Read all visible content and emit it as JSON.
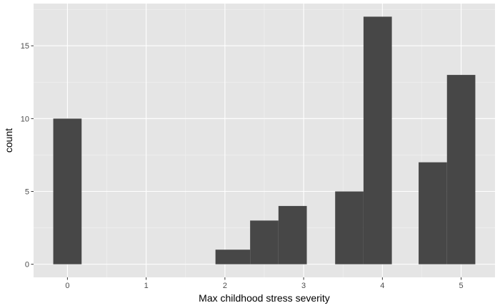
{
  "chart_data": {
    "type": "bar",
    "xlabel": "Max childhood stress severity",
    "ylabel": "count",
    "xlim": [
      -0.43,
      5.43
    ],
    "ylim": [
      -0.9,
      17.9
    ],
    "x_ticks": [
      0,
      1,
      2,
      3,
      4,
      5
    ],
    "x_tick_labels": [
      "0",
      "1",
      "2",
      "3",
      "4",
      "5"
    ],
    "y_ticks": [
      0,
      5,
      10,
      15
    ],
    "y_tick_labels": [
      "0",
      "5",
      "10",
      "15"
    ],
    "bins": [
      {
        "x0": -0.18,
        "x1": 0.18,
        "count": 10
      },
      {
        "x0": 1.88,
        "x1": 2.32,
        "count": 1
      },
      {
        "x0": 2.32,
        "x1": 2.68,
        "count": 3
      },
      {
        "x0": 2.68,
        "x1": 3.04,
        "count": 4
      },
      {
        "x0": 3.4,
        "x1": 3.76,
        "count": 5
      },
      {
        "x0": 3.76,
        "x1": 4.12,
        "count": 17
      },
      {
        "x0": 4.46,
        "x1": 4.82,
        "count": 7
      },
      {
        "x0": 4.82,
        "x1": 5.18,
        "count": 13
      }
    ],
    "grid": true,
    "colors": {
      "panel_background": "#e5e5e5",
      "grid_major": "#ffffff",
      "grid_minor": "#f2f2f2",
      "bar_fill": "#474747",
      "tick_color": "#333333"
    }
  }
}
